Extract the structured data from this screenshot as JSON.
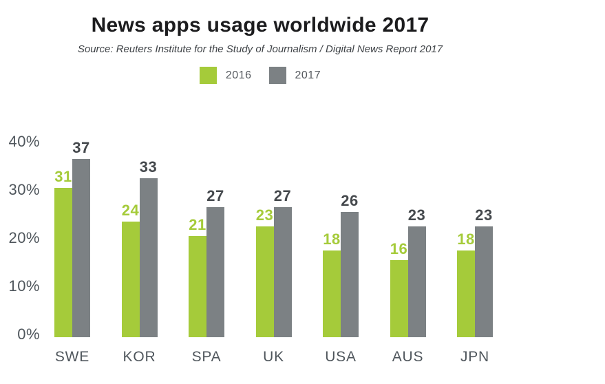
{
  "chart_data": {
    "type": "bar",
    "title": "News apps usage worldwide 2017",
    "subtitle": "Source: Reuters Institute for the Study of Journalism / Digital News Report 2017",
    "categories": [
      "SWE",
      "KOR",
      "SPA",
      "UK",
      "USA",
      "AUS",
      "JPN"
    ],
    "series": [
      {
        "name": "2016",
        "color": "#a5cb3a",
        "label_color": "#a5cb3a",
        "values": [
          31,
          24,
          21,
          23,
          18,
          16,
          18
        ]
      },
      {
        "name": "2017",
        "color": "#7c8184",
        "label_color": "#45494d",
        "values": [
          37,
          33,
          27,
          27,
          26,
          23,
          23
        ]
      }
    ],
    "y_ticks": [
      {
        "value": 0,
        "label": "0%"
      },
      {
        "value": 10,
        "label": "10%"
      },
      {
        "value": 20,
        "label": "20%"
      },
      {
        "value": 30,
        "label": "30%"
      },
      {
        "value": 40,
        "label": "40%"
      }
    ],
    "ylim": [
      0,
      40
    ],
    "grid": false,
    "legend_position": "top",
    "colors": {
      "background": "#ffffff",
      "title_text": "#1c1c1e",
      "subtitle_text": "#3f4347",
      "axis_text": "#4f565c",
      "legend_text": "#55595e",
      "series_2016": "#a5cb3a",
      "series_2017": "#7c8184"
    }
  }
}
